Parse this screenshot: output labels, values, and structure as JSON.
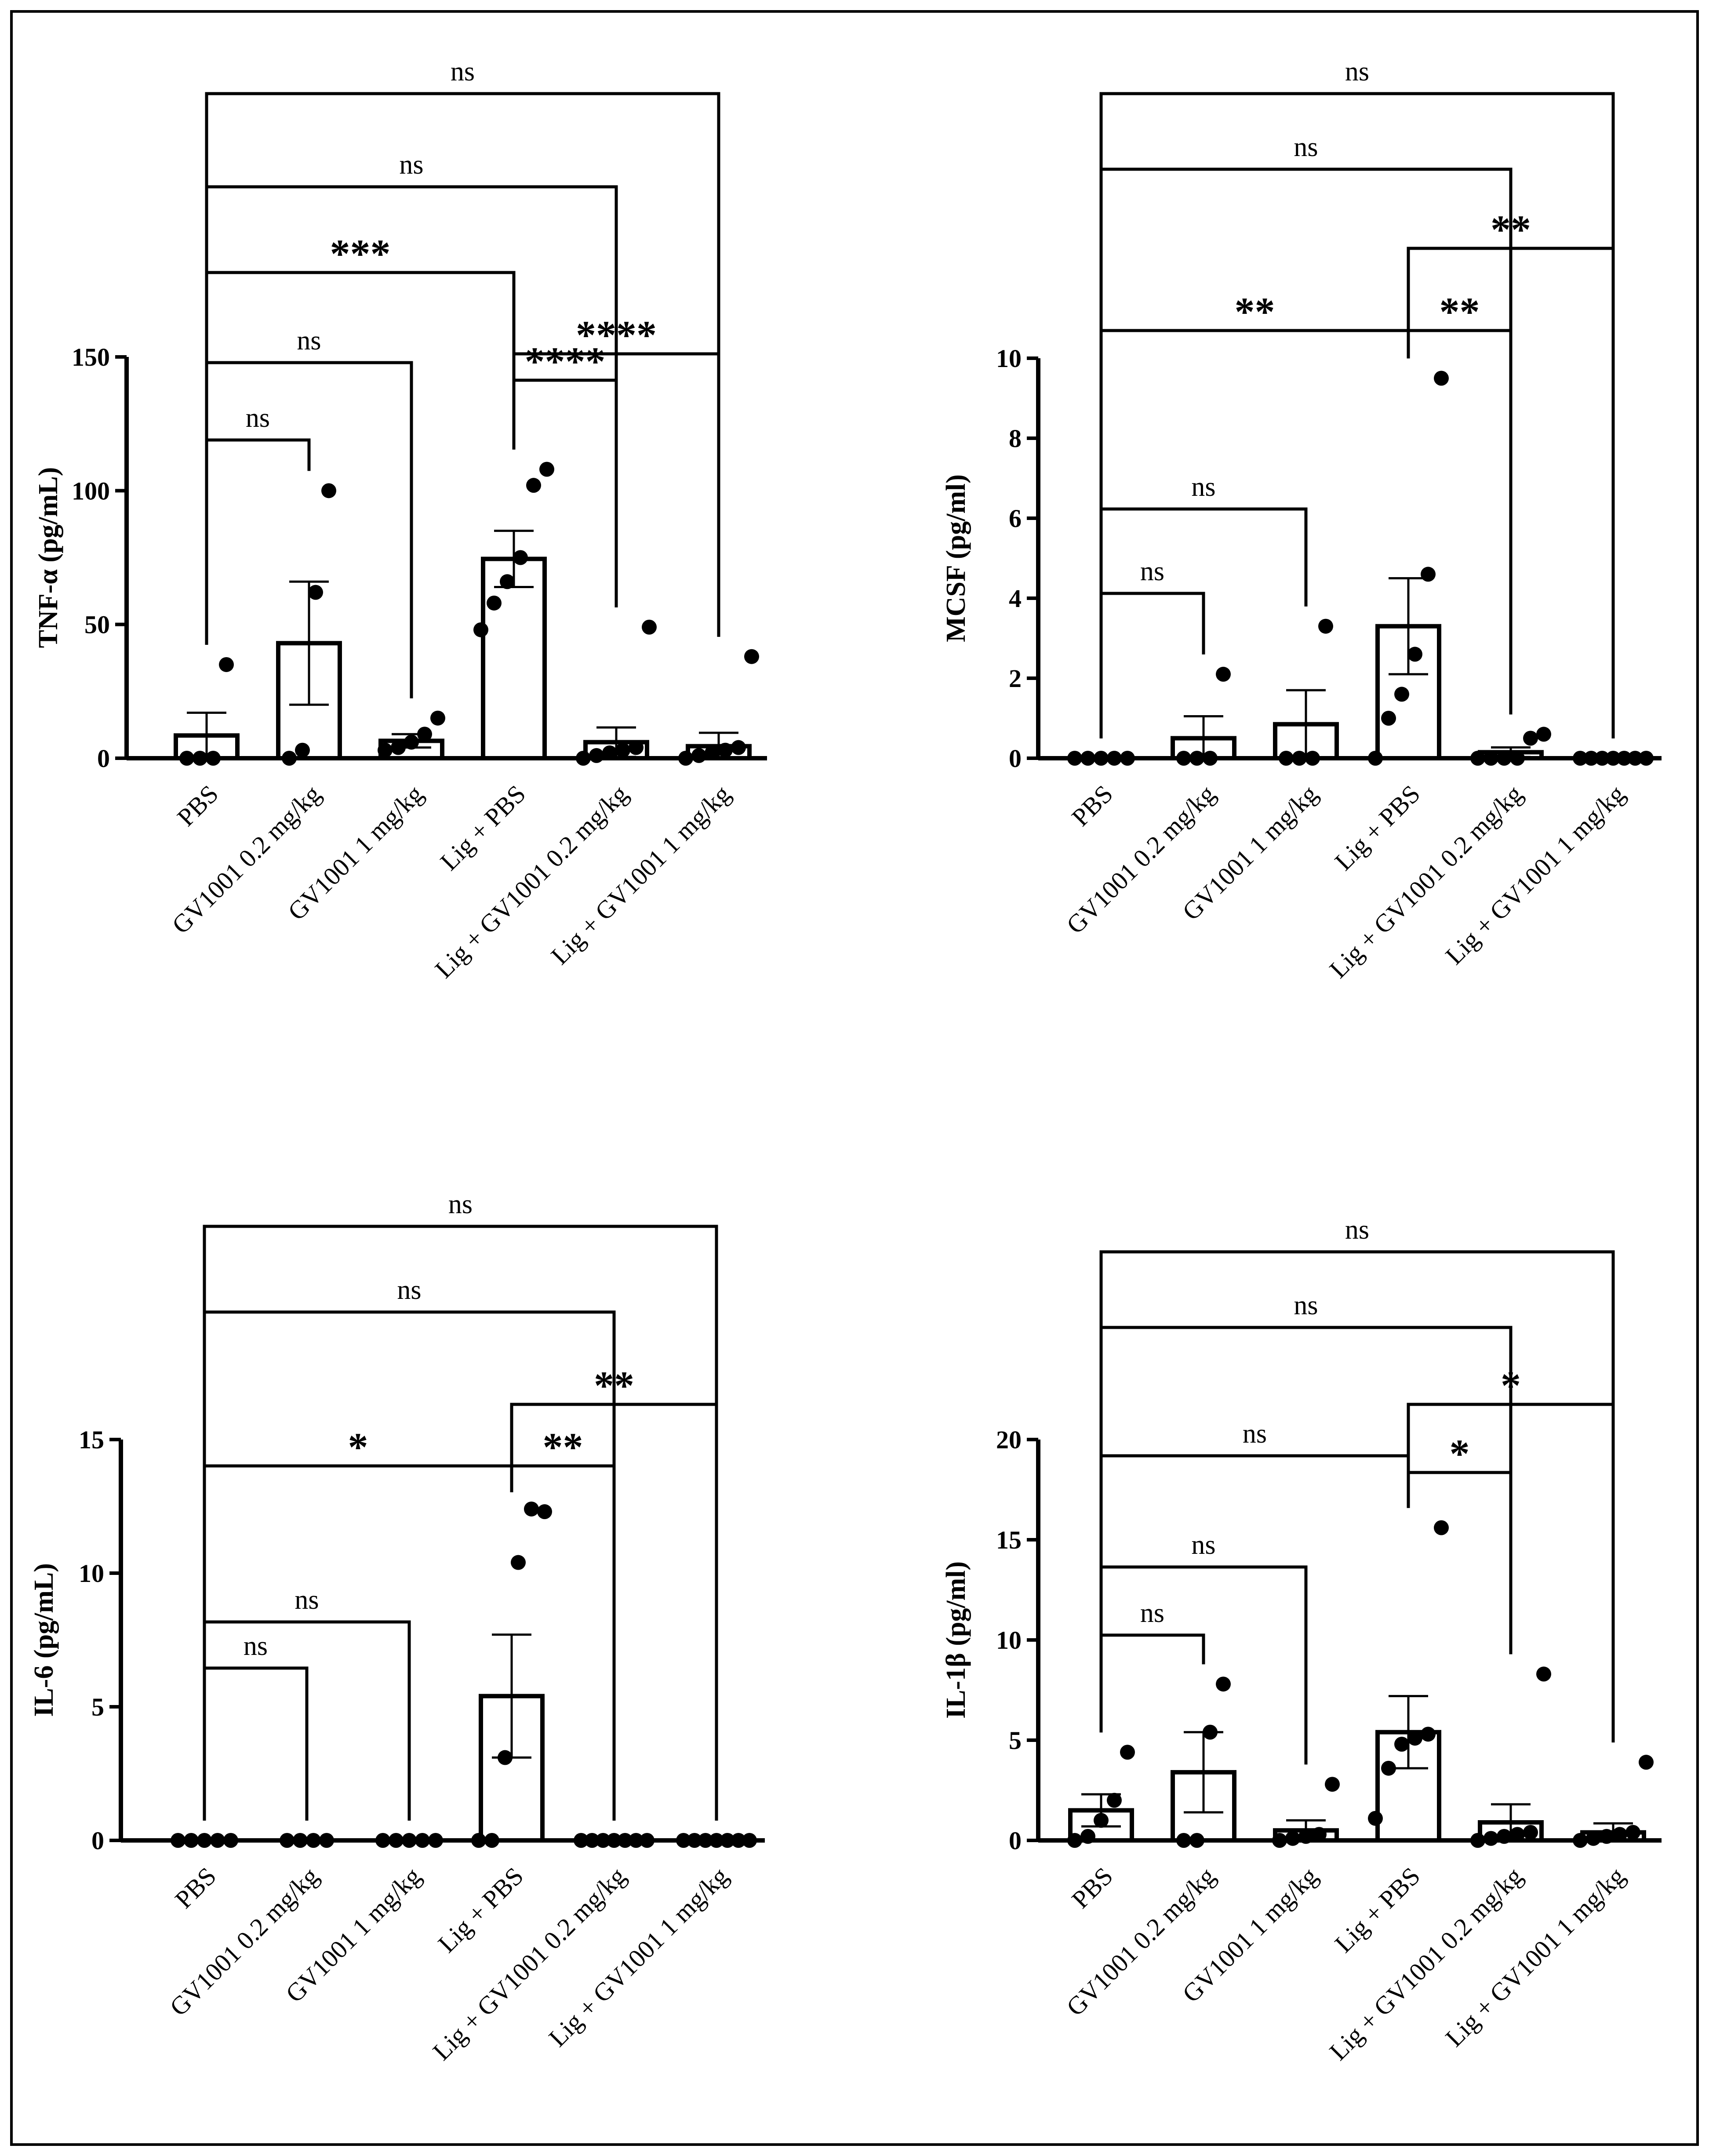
{
  "chart_data": [
    {
      "id": "tnf",
      "type": "bar",
      "ylabel": "TNF-α (pg/mL)",
      "ylim": [
        0,
        150
      ],
      "yticks": [
        0,
        50,
        100,
        150
      ],
      "categories": [
        "PBS",
        "GV1001 0.2 mg/kg",
        "GV1001 1 mg/kg",
        "Lig + PBS",
        "Lig + GV1001 0.2 mg/kg",
        "Lig + GV1001 1 mg/kg"
      ],
      "means": [
        8.5,
        43,
        6.5,
        74.5,
        6,
        4.5
      ],
      "sem": [
        8.5,
        23,
        2.5,
        10.5,
        5.5,
        5
      ],
      "points": [
        [
          0,
          0,
          0,
          35
        ],
        [
          0,
          3,
          62,
          100
        ],
        [
          3,
          4,
          6,
          9,
          15
        ],
        [
          48,
          58,
          66,
          75,
          102,
          108
        ],
        [
          0,
          1,
          2,
          3,
          4,
          49
        ],
        [
          0,
          1,
          2,
          3,
          4,
          38
        ]
      ],
      "comparisons": [
        {
          "from": 0,
          "to": 1,
          "label": "ns"
        },
        {
          "from": 0,
          "to": 2,
          "label": "ns"
        },
        {
          "from": 3,
          "to": 4,
          "label": "****"
        },
        {
          "from": 3,
          "to": 5,
          "label": "****"
        },
        {
          "from": 0,
          "to": 3,
          "label": "***"
        },
        {
          "from": 0,
          "to": 4,
          "label": "ns"
        },
        {
          "from": 0,
          "to": 5,
          "label": "ns"
        }
      ]
    },
    {
      "id": "mcsf",
      "type": "bar",
      "ylabel": "MCSF (pg/ml)",
      "ylim": [
        0,
        10
      ],
      "yticks": [
        0,
        2,
        4,
        6,
        8,
        10
      ],
      "categories": [
        "PBS",
        "GV1001 0.2 mg/kg",
        "GV1001 1 mg/kg",
        "Lig + PBS",
        "Lig + GV1001 0.2 mg/kg",
        "Lig + GV1001 1 mg/kg"
      ],
      "means": [
        0,
        0.5,
        0.85,
        3.3,
        0.15,
        0
      ],
      "sem": [
        0,
        0.55,
        0.85,
        1.2,
        0.12,
        0
      ],
      "points": [
        [
          0,
          0,
          0,
          0,
          0
        ],
        [
          0,
          0,
          0,
          2.1
        ],
        [
          0,
          0,
          0,
          3.3
        ],
        [
          0,
          1,
          1.6,
          2.6,
          4.6,
          9.5
        ],
        [
          0,
          0,
          0,
          0,
          0.5,
          0.6
        ],
        [
          0,
          0,
          0,
          0,
          0,
          0,
          0
        ]
      ],
      "comparisons": [
        {
          "from": 0,
          "to": 1,
          "label": "ns"
        },
        {
          "from": 0,
          "to": 2,
          "label": "ns"
        },
        {
          "from": 0,
          "to": 3,
          "label": "**"
        },
        {
          "from": 3,
          "to": 4,
          "label": "**"
        },
        {
          "from": 3,
          "to": 5,
          "label": "**"
        },
        {
          "from": 0,
          "to": 4,
          "label": "ns"
        },
        {
          "from": 0,
          "to": 5,
          "label": "ns"
        }
      ]
    },
    {
      "id": "il6",
      "type": "bar",
      "ylabel": "IL-6 (pg/mL)",
      "ylim": [
        0,
        15
      ],
      "yticks": [
        0,
        5,
        10,
        15
      ],
      "categories": [
        "PBS",
        "GV1001 0.2 mg/kg",
        "GV1001 1 mg/kg",
        "Lig + PBS",
        "Lig + GV1001 0.2 mg/kg",
        "Lig + GV1001 1 mg/kg"
      ],
      "means": [
        0,
        0,
        0,
        5.4,
        0,
        0
      ],
      "sem": [
        0,
        0,
        0,
        2.3,
        0,
        0
      ],
      "points": [
        [
          0,
          0,
          0,
          0,
          0
        ],
        [
          0,
          0,
          0,
          0
        ],
        [
          0,
          0,
          0,
          0,
          0
        ],
        [
          0,
          0,
          3.1,
          10.4,
          12.4,
          12.3
        ],
        [
          0,
          0,
          0,
          0,
          0,
          0,
          0
        ],
        [
          0,
          0,
          0,
          0,
          0,
          0,
          0
        ]
      ],
      "comparisons": [
        {
          "from": 0,
          "to": 1,
          "label": "ns"
        },
        {
          "from": 0,
          "to": 2,
          "label": "ns"
        },
        {
          "from": 3,
          "to": 4,
          "label": "**"
        },
        {
          "from": 0,
          "to": 3,
          "label": "*"
        },
        {
          "from": 3,
          "to": 5,
          "label": "**"
        },
        {
          "from": 0,
          "to": 4,
          "label": "ns"
        },
        {
          "from": 0,
          "to": 5,
          "label": "ns"
        }
      ]
    },
    {
      "id": "il1b",
      "type": "bar",
      "ylabel": "IL-1β (pg/ml)",
      "ylim": [
        0,
        20
      ],
      "yticks": [
        0,
        5,
        10,
        15,
        20
      ],
      "categories": [
        "PBS",
        "GV1001 0.2 mg/kg",
        "GV1001 1 mg/kg",
        "Lig + PBS",
        "Lig + GV1001 0.2 mg/kg",
        "Lig + GV1001 1 mg/kg"
      ],
      "means": [
        1.5,
        3.4,
        0.5,
        5.4,
        0.9,
        0.4
      ],
      "sem": [
        0.8,
        2,
        0.5,
        1.8,
        0.9,
        0.45
      ],
      "points": [
        [
          0,
          0.2,
          1,
          2,
          4.4
        ],
        [
          0,
          0,
          5.4,
          7.8
        ],
        [
          0,
          0.1,
          0.2,
          0.3,
          2.8
        ],
        [
          1.1,
          3.6,
          4.8,
          5.1,
          5.3,
          15.6
        ],
        [
          0,
          0.1,
          0.2,
          0.3,
          0.4,
          8.3
        ],
        [
          0,
          0.1,
          0.2,
          0.3,
          0.4,
          3.9
        ]
      ],
      "comparisons": [
        {
          "from": 0,
          "to": 1,
          "label": "ns"
        },
        {
          "from": 0,
          "to": 2,
          "label": "ns"
        },
        {
          "from": 3,
          "to": 4,
          "label": "*"
        },
        {
          "from": 0,
          "to": 3,
          "label": "ns"
        },
        {
          "from": 3,
          "to": 5,
          "label": "*"
        },
        {
          "from": 0,
          "to": 4,
          "label": "ns"
        },
        {
          "from": 0,
          "to": 5,
          "label": "ns"
        }
      ]
    }
  ]
}
